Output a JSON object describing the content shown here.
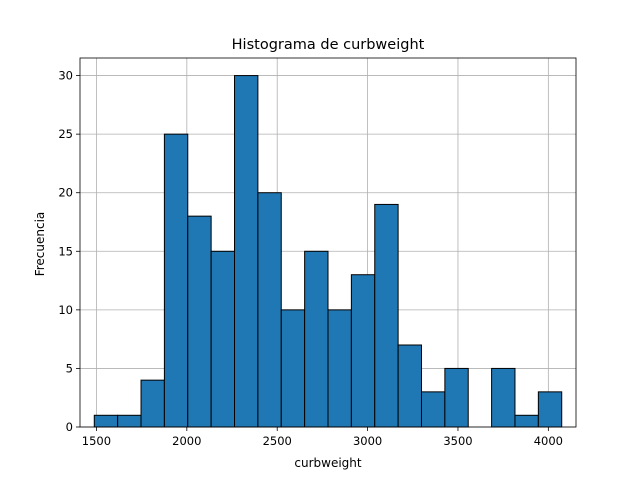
{
  "chart_data": {
    "type": "bar",
    "title": "Histograma de curbweight",
    "xlabel": "curbweight",
    "ylabel": "Frecuencia",
    "bin_edges": [
      1488,
      1617.3,
      1746.6,
      1875.9,
      2005.2,
      2134.5,
      2263.8,
      2393.1,
      2522.4,
      2651.7,
      2781,
      2910.3,
      3039.6,
      3168.9,
      3298.2,
      3427.5,
      3556.8,
      3686.1,
      3815.4,
      3944.7,
      4074
    ],
    "values": [
      1,
      1,
      4,
      25,
      18,
      15,
      30,
      20,
      10,
      15,
      10,
      13,
      19,
      7,
      3,
      5,
      0,
      5,
      1,
      3
    ],
    "xlim": [
      1409,
      4153
    ],
    "ylim": [
      0,
      31.5
    ],
    "x_ticks": [
      1500,
      2000,
      2500,
      3000,
      3500,
      4000
    ],
    "y_ticks": [
      0,
      5,
      10,
      15,
      20,
      25,
      30
    ],
    "grid": true,
    "bar_color": "#1f77b4",
    "edge_color": "#000000"
  }
}
